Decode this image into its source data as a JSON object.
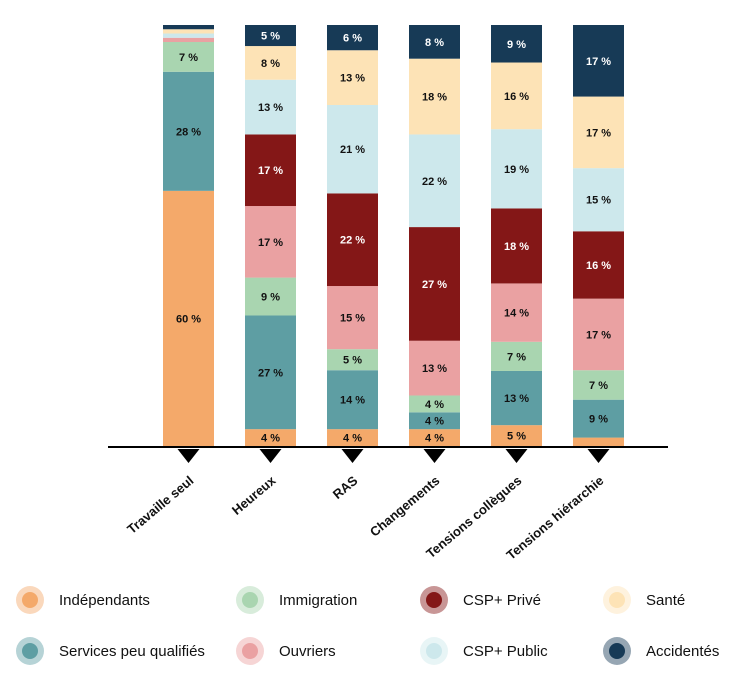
{
  "chart_data": {
    "type": "bar",
    "stacked": true,
    "percent": true,
    "categories": [
      "Travaille seul",
      "Heureux",
      "RAS",
      "Changements",
      "Tensions collègues",
      "Tensions hiérarchie"
    ],
    "series": [
      {
        "name": "Indépendants",
        "color": "#f4a96a",
        "values": [
          60,
          4,
          4,
          4,
          5,
          2
        ],
        "labels": [
          "60 %",
          "4 %",
          "4 %",
          "4 %",
          "5 %",
          ""
        ]
      },
      {
        "name": "Services peu qualifiés",
        "color": "#5e9ea3",
        "values": [
          28,
          27,
          14,
          4,
          13,
          9
        ],
        "labels": [
          "28 %",
          "27 %",
          "14 %",
          "4 %",
          "13 %",
          "9 %"
        ]
      },
      {
        "name": "Immigration",
        "color": "#a9d5b0",
        "values": [
          7,
          9,
          5,
          4,
          7,
          7
        ],
        "labels": [
          "7 %",
          "9 %",
          "5 %",
          "4 %",
          "7 %",
          "7 %"
        ]
      },
      {
        "name": "Ouvriers",
        "color": "#eaa1a2",
        "values": [
          1,
          17,
          15,
          13,
          14,
          17
        ],
        "labels": [
          "",
          "17 %",
          "15 %",
          "13 %",
          "14 %",
          "17 %"
        ]
      },
      {
        "name": "CSP+ Privé",
        "color": "#841717",
        "values": [
          0,
          17,
          22,
          27,
          18,
          16
        ],
        "labels": [
          "",
          "17 %",
          "22 %",
          "27 %",
          "18 %",
          "16 %"
        ]
      },
      {
        "name": "CSP+ Public",
        "color": "#cde8ec",
        "values": [
          1,
          13,
          21,
          22,
          19,
          15
        ],
        "labels": [
          "",
          "13 %",
          "21 %",
          "22 %",
          "19 %",
          "15 %"
        ]
      },
      {
        "name": "Santé",
        "color": "#fde3b6",
        "values": [
          1,
          8,
          13,
          18,
          16,
          17
        ],
        "labels": [
          "",
          "8 %",
          "13 %",
          "18 %",
          "16 %",
          "17 %"
        ]
      },
      {
        "name": "Accidentés",
        "color": "#173a56",
        "values": [
          1,
          5,
          6,
          8,
          9,
          17
        ],
        "labels": [
          "",
          "5 %",
          "6 %",
          "8 %",
          "9 %",
          "17 %"
        ]
      }
    ],
    "legend": {
      "position": "bottom",
      "order": [
        "Indépendants",
        "Immigration",
        "CSP+ Privé",
        "Santé",
        "Services peu qualifiés",
        "Ouvriers",
        "CSP+ Public",
        "Accidentés"
      ]
    }
  }
}
